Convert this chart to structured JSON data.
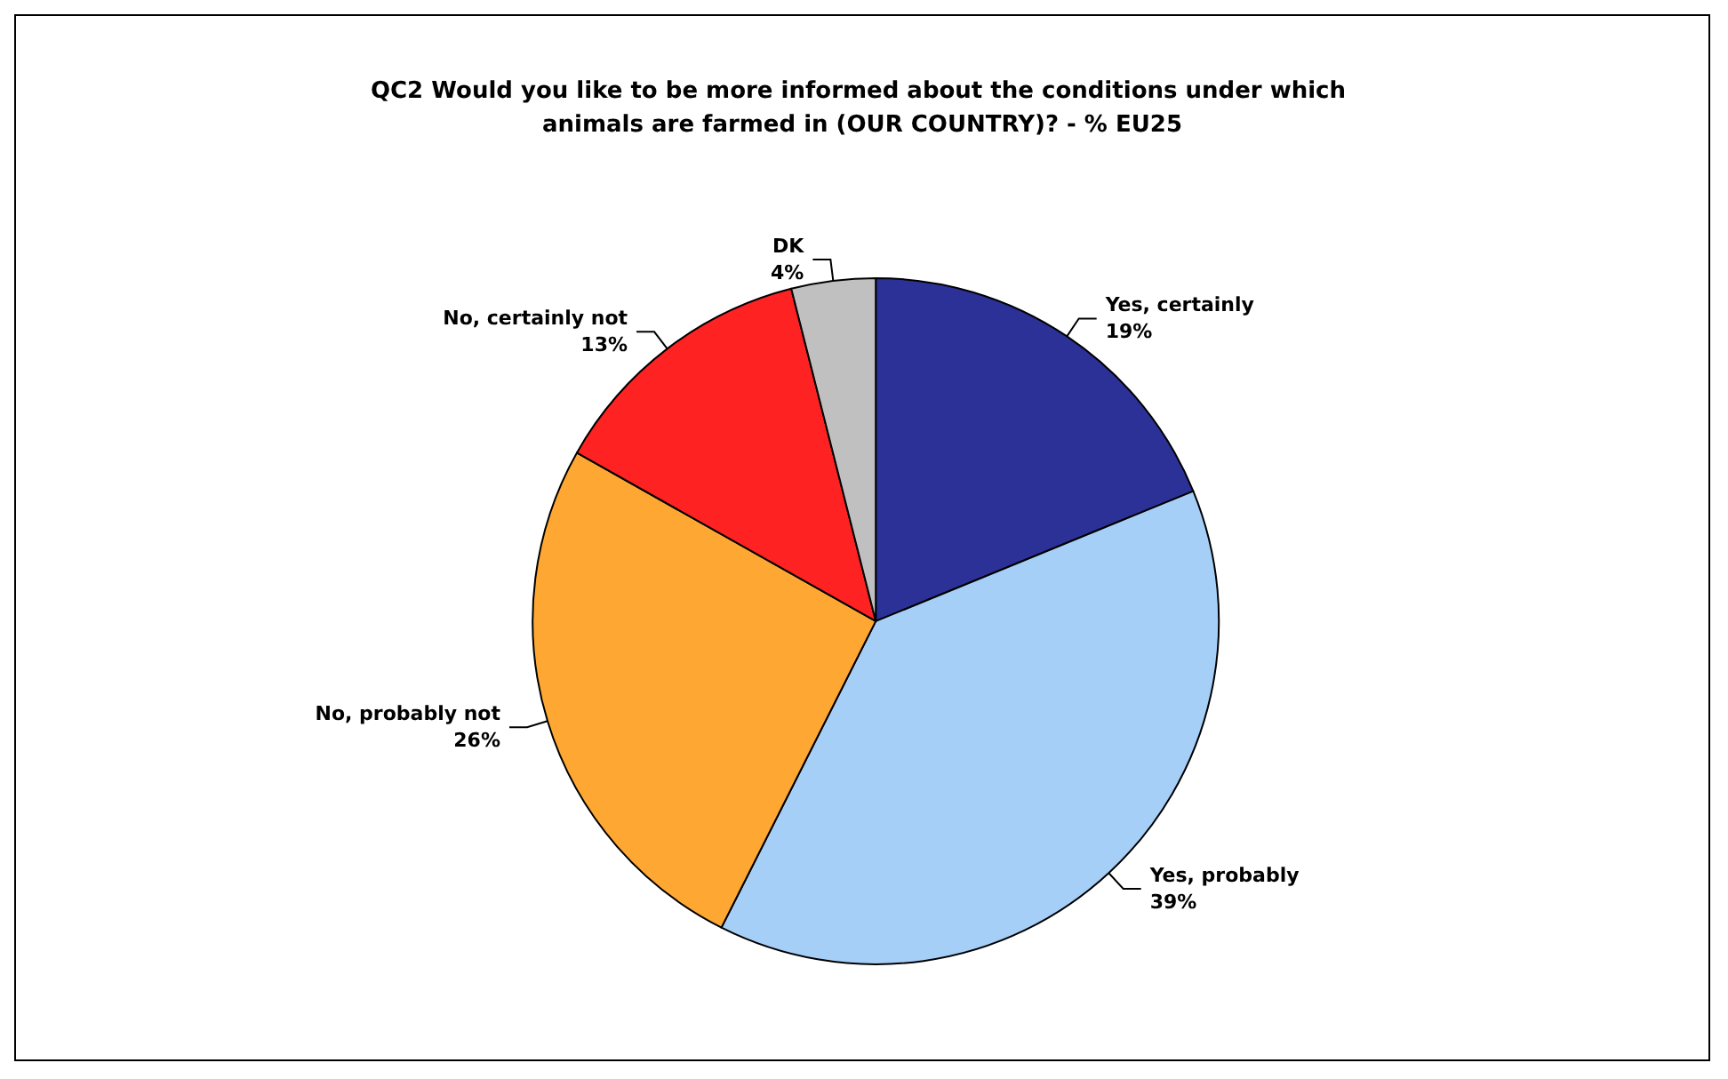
{
  "chart_data": {
    "type": "pie",
    "title": "QC2 Would you like to be more informed about the conditions under which animals are farmed in (OUR COUNTRY)? - % EU25",
    "categories": [
      "Yes, certainly",
      "Yes, probably",
      "No, probably not",
      "No, certainly not",
      "DK"
    ],
    "values": [
      19,
      39,
      26,
      13,
      4
    ],
    "colors": [
      "#2b3196",
      "#a6cff8",
      "#ffa733",
      "#ff2222",
      "#c0c0c0"
    ],
    "value_labels": [
      "19%",
      "39%",
      "26%",
      "13%",
      "4%"
    ],
    "legend": false
  }
}
